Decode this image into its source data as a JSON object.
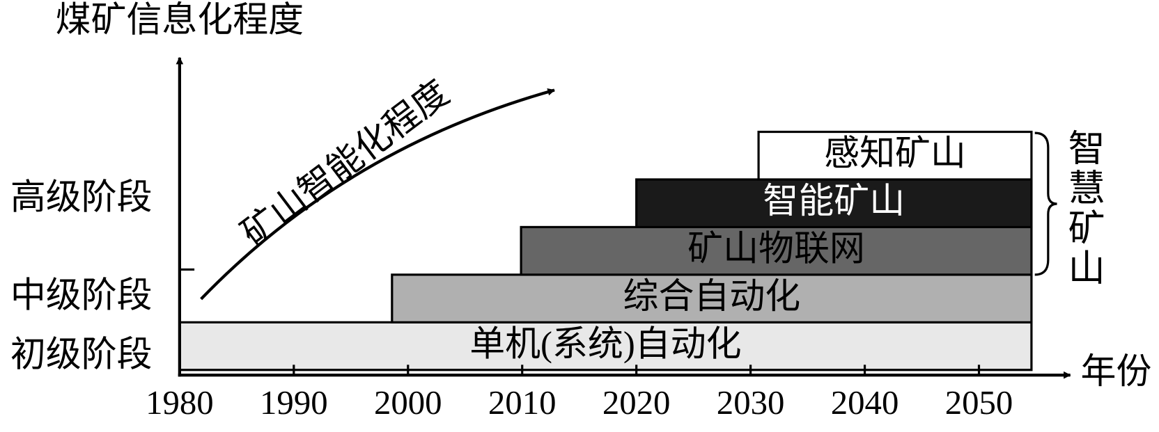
{
  "chart_data": {
    "type": "range-bar",
    "y_title": "煤矿信息化程度",
    "x_title": "年份",
    "xlim": [
      1980,
      2058
    ],
    "xticks": [
      1980,
      1990,
      2000,
      2010,
      2020,
      2030,
      2040,
      2050
    ],
    "levels": [
      "初级阶段",
      "中级阶段",
      "高级阶段"
    ],
    "bars": [
      {
        "name": "单机(系统)自动化",
        "start": 1980,
        "end": 2054.6,
        "color": "#e8e8e8",
        "text_color": "#000000"
      },
      {
        "name": "综合自动化",
        "start": 1998.6,
        "end": 2054.6,
        "color": "#b0b0b0",
        "text_color": "#000000"
      },
      {
        "name": "矿山物联网",
        "start": 2009.9,
        "end": 2054.6,
        "color": "#666666",
        "text_color": "#000000"
      },
      {
        "name": "智能矿山",
        "start": 2020,
        "end": 2054.6,
        "color": "#1a1a1a",
        "text_color": "#ffffff"
      },
      {
        "name": "感知矿山",
        "start": 2030.7,
        "end": 2054.6,
        "color": "#ffffff",
        "text_color": "#000000"
      }
    ],
    "bracket_label": "智慧矿山",
    "arrow_label": "矿山智能化程度"
  }
}
